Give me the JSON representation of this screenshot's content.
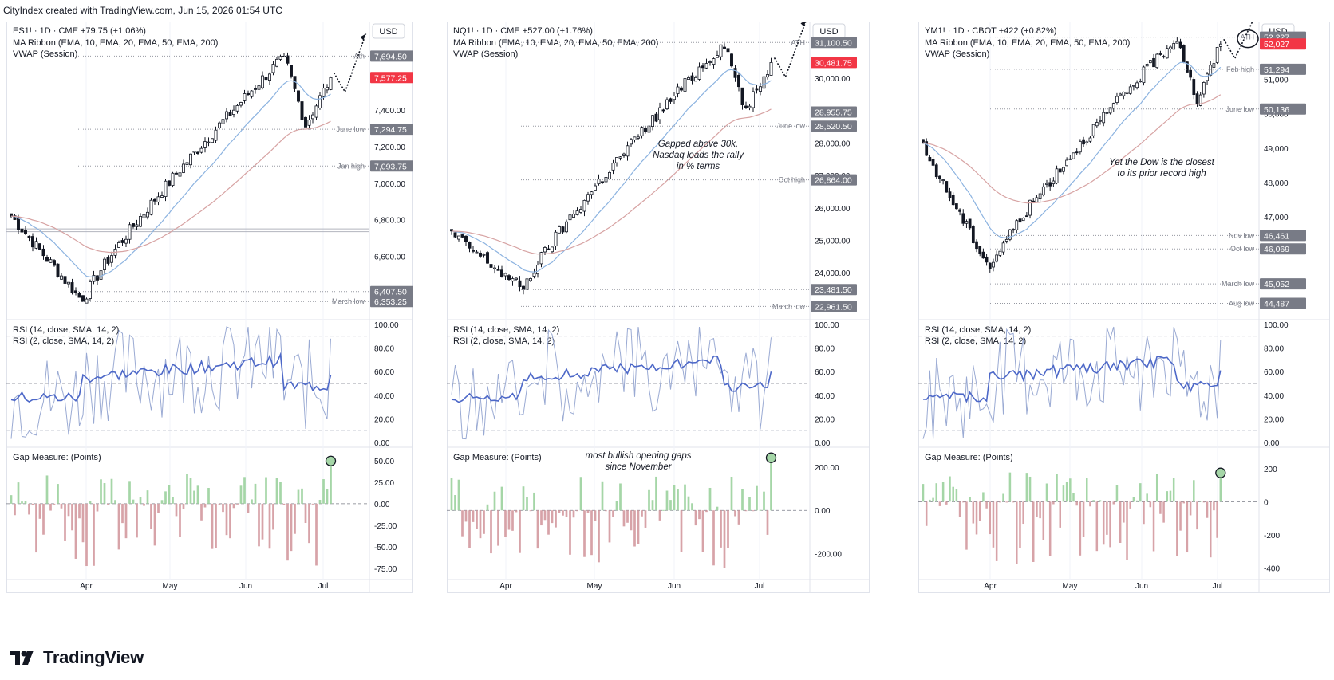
{
  "header": "CityIndex created with TradingView.com, Jun 15, 2026 01:54 UTC",
  "brand": "TradingView",
  "chart_data": [
    {
      "type": "candlestick",
      "symbol_line": "ES1! · 1D · CME  +79.75 (+1.06%)",
      "indicator_lines": [
        "MA Ribbon (EMA, 10, EMA, 20, EMA, 50, EMA, 200)",
        "VWAP (Session)"
      ],
      "currency": "USD",
      "x_labels": [
        "Apr",
        "May",
        "Jun",
        "Jul"
      ],
      "price_ticks": [
        "7,400.00",
        "7,200.00",
        "7,000.00",
        "6,800.00",
        "6,600.00"
      ],
      "ylim": [
        6280,
        7840
      ],
      "price_tags": [
        {
          "text": "7,694.50",
          "value": 7694.5,
          "line_label": "Ath",
          "kind": "level"
        },
        {
          "text": "7,577.25",
          "value": 7577.25,
          "line_label": "",
          "kind": "last"
        },
        {
          "text": "7,294.75",
          "value": 7294.75,
          "line_label": "June low",
          "kind": "level"
        },
        {
          "text": "7,093.75",
          "value": 7093.75,
          "line_label": "Jan high",
          "kind": "level"
        },
        {
          "text": "6,407.50",
          "value": 6407.5,
          "line_label": "",
          "kind": "level"
        },
        {
          "text": "6,353.25",
          "value": 6353.25,
          "line_label": "March low",
          "kind": "level"
        }
      ],
      "extra_lines": [
        6750,
        6735
      ],
      "candles": {
        "start": 6820,
        "end": 7577,
        "low": 6353,
        "high": 7694,
        "count": 90
      },
      "annotation": [],
      "rsi": {
        "legend": [
          "RSI (14, close, SMA, 14, 2)",
          "RSI (2, close, SMA, 14, 2)"
        ],
        "ticks": [
          "100.00",
          "80.00",
          "60.00",
          "40.00",
          "20.00",
          "0.00"
        ],
        "levels": [
          70,
          50,
          30
        ],
        "last_rsi14": 57,
        "last_rsi2": 88
      },
      "gap": {
        "legend": "Gap Measure: (Points)",
        "ticks": [
          {
            "v": 50,
            "t": "50.00"
          },
          {
            "v": 25,
            "t": "25.00"
          },
          {
            "v": 0,
            "t": "0.00"
          },
          {
            "v": -25,
            "t": "-25.00"
          },
          {
            "v": -50,
            "t": "-50.00"
          },
          {
            "v": -75,
            "t": "-75.00"
          }
        ],
        "ylim": [
          -88,
          60
        ],
        "last": 45,
        "annotation": []
      }
    },
    {
      "type": "candlestick",
      "symbol_line": "NQ1! · 1D · CME  +527.00 (+1.76%)",
      "indicator_lines": [
        "MA Ribbon (EMA, 10, EMA, 20, EMA, 50, EMA, 200)",
        "VWAP (Session)"
      ],
      "currency": "USD",
      "x_labels": [
        "Apr",
        "May",
        "Jun",
        "Jul"
      ],
      "price_ticks": [
        "30,000.00",
        "29,000.00",
        "28,000.00",
        "27,000.00",
        "26,000.00",
        "25,000.00",
        "24,000.00"
      ],
      "ylim": [
        22700,
        31500
      ],
      "price_tags": [
        {
          "text": "31,100.50",
          "value": 31100.5,
          "line_label": "ATH",
          "kind": "level"
        },
        {
          "text": "30,481.75",
          "value": 30481.75,
          "line_label": "",
          "kind": "last"
        },
        {
          "text": "28,955.75",
          "value": 28955.75,
          "line_label": "",
          "kind": "level"
        },
        {
          "text": "28,520.50",
          "value": 28520.5,
          "line_label": "June low",
          "kind": "level"
        },
        {
          "text": "26,864.00",
          "value": 26864.0,
          "line_label": "Oct high",
          "kind": "level"
        },
        {
          "text": "23,481.50",
          "value": 23481.5,
          "line_label": "",
          "kind": "level"
        },
        {
          "text": "22,961.50",
          "value": 22961.5,
          "line_label": "March low",
          "kind": "level"
        }
      ],
      "extra_lines": [],
      "candles": {
        "start": 25200,
        "end": 30481,
        "low": 23481,
        "high": 31100,
        "count": 90
      },
      "annotation": [
        "Gapped above 30k,",
        "Nasdaq leads the rally",
        "in % terms"
      ],
      "rsi": {
        "legend": [
          "RSI (14, close, SMA, 14, 2)",
          "RSI (2, close, SMA, 14, 2)"
        ],
        "ticks": [
          "100.00",
          "80.00",
          "60.00",
          "40.00",
          "20.00",
          "0.00"
        ],
        "levels": [
          70,
          50,
          30
        ],
        "last_rsi14": 60,
        "last_rsi2": 89
      },
      "gap": {
        "legend": "Gap Measure: (Points)",
        "ticks": [
          {
            "v": 200,
            "t": "200.00"
          },
          {
            "v": 0,
            "t": "0.00"
          },
          {
            "v": -200,
            "t": "-200.00"
          }
        ],
        "ylim": [
          -320,
          270
        ],
        "last": 225,
        "annotation": [
          "most bullish opening gaps",
          "since November"
        ]
      }
    },
    {
      "type": "candlestick",
      "symbol_line": "YM1! · 1D · CBOT  +422 (+0.82%)",
      "indicator_lines": [
        "MA Ribbon (EMA, 10, EMA, 20, EMA, 50, EMA, 200)",
        "VWAP (Session)"
      ],
      "currency": "USD",
      "x_labels": [
        "Apr",
        "May",
        "Jun",
        "Jul"
      ],
      "price_ticks": [
        "51,000",
        "50,000",
        "49,000",
        "48,000",
        "47,000"
      ],
      "ylim": [
        44150,
        52450
      ],
      "price_tags": [
        {
          "text": "52,227",
          "value": 52227,
          "line_label": "ATH",
          "kind": "level"
        },
        {
          "text": "52,027",
          "value": 52027,
          "line_label": "",
          "kind": "last"
        },
        {
          "text": "51,294",
          "value": 51294,
          "line_label": "Feb high",
          "kind": "level"
        },
        {
          "text": "50,136",
          "value": 50136,
          "line_label": "June low",
          "kind": "level"
        },
        {
          "text": "46,461",
          "value": 46461,
          "line_label": "Nov low",
          "kind": "level"
        },
        {
          "text": "46,069",
          "value": 46069,
          "line_label": "Oct low",
          "kind": "level"
        },
        {
          "text": "45,052",
          "value": 45052,
          "line_label": "March low",
          "kind": "level"
        },
        {
          "text": "44,487",
          "value": 44487,
          "line_label": "Aug low",
          "kind": "level"
        }
      ],
      "extra_lines": [],
      "candles": {
        "start": 49000,
        "end": 52027,
        "low": 45500,
        "high": 52227,
        "count": 90
      },
      "annotation": [
        "Yet the Dow is the closest",
        "to its prior record high"
      ],
      "rsi": {
        "legend": [
          "RSI (14, close, SMA, 14, 2)",
          "RSI (2, close, SMA, 14, 2)"
        ],
        "ticks": [
          "100.00",
          "80.00",
          "60.00",
          "40.00",
          "20.00",
          "0.00"
        ],
        "levels": [
          70,
          50,
          30
        ],
        "last_rsi14": 61,
        "last_rsi2": 87
      },
      "gap": {
        "legend": "Gap Measure: (Points)",
        "ticks": [
          {
            "v": 200,
            "t": "200"
          },
          {
            "v": 0,
            "t": "0"
          },
          {
            "v": -200,
            "t": "-200"
          },
          {
            "v": -400,
            "t": "-400"
          }
        ],
        "ylim": [
          -470,
          300
        ],
        "last": 150,
        "annotation": []
      }
    }
  ]
}
